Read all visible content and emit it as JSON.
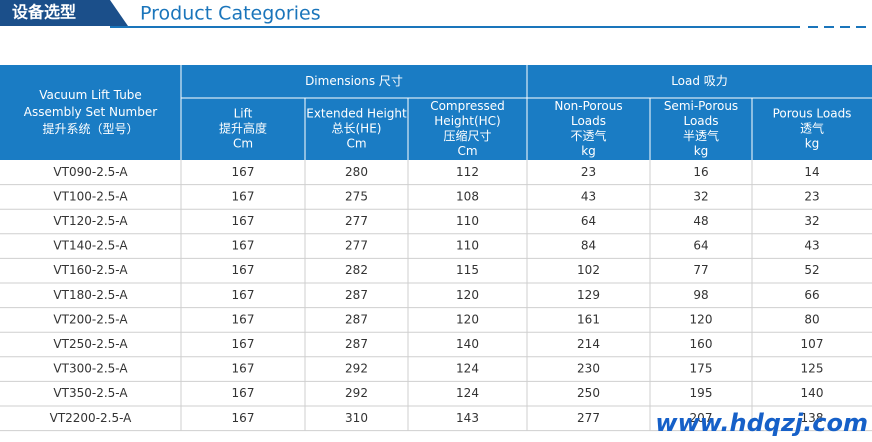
{
  "header": {
    "title_cn": "设备选型",
    "title_en": "Product Categories"
  },
  "table": {
    "group_headers": [
      "Dimensions 尺寸",
      "Load 吸力"
    ],
    "column_headers": [
      [
        "Vacuum Lift Tube",
        "Assembly Set Number",
        "提升系统（型号）"
      ],
      [
        "Lift",
        "提升高度",
        "Cm"
      ],
      [
        "Extended Height",
        "总长(HE)",
        "Cm"
      ],
      [
        "Compressed",
        "Height(HC)",
        "压缩尺寸",
        "Cm"
      ],
      [
        "Non-Porous",
        "Loads",
        "不透气",
        "kg"
      ],
      [
        "Semi-Porous",
        "Loads",
        "半透气",
        "kg"
      ],
      [
        "Porous Loads",
        "透气",
        "kg"
      ]
    ],
    "rows": [
      [
        "VT090-2.5-A",
        167,
        280,
        112,
        23,
        16,
        14
      ],
      [
        "VT100-2.5-A",
        167,
        275,
        108,
        43,
        32,
        23
      ],
      [
        "VT120-2.5-A",
        167,
        277,
        110,
        64,
        48,
        32
      ],
      [
        "VT140-2.5-A",
        167,
        277,
        110,
        84,
        64,
        43
      ],
      [
        "VT160-2.5-A",
        167,
        282,
        115,
        102,
        77,
        52
      ],
      [
        "VT180-2.5-A",
        167,
        287,
        120,
        129,
        98,
        66
      ],
      [
        "VT200-2.5-A",
        167,
        287,
        120,
        161,
        120,
        80
      ],
      [
        "VT250-2.5-A",
        167,
        287,
        140,
        214,
        160,
        107
      ],
      [
        "VT300-2.5-A",
        167,
        292,
        124,
        230,
        175,
        125
      ],
      [
        "VT350-2.5-A",
        167,
        292,
        124,
        250,
        195,
        140
      ],
      [
        "VT2200-2.5-A",
        167,
        310,
        143,
        277,
        207,
        138
      ]
    ]
  },
  "watermark": "www.hdqzj.com"
}
